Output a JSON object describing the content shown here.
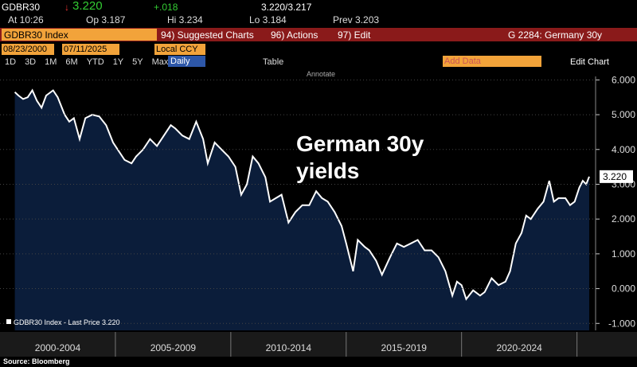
{
  "header": {
    "ticker": "GDBR30",
    "price": "3.220",
    "change": "+.018",
    "bid_ask": "3.220/3.217",
    "time": "At 10:26",
    "open": "Op 3.187",
    "high": "Hi 3.234",
    "low": "Lo 3.184",
    "prev": "Prev 3.203",
    "security": "GDBR30 Index",
    "menu": [
      "94) Suggested Charts",
      "96) Actions",
      "97) Edit"
    ],
    "page": "G 2284: Germany 30y",
    "start_date": "08/23/2000",
    "end_date": "07/11/2025",
    "currency": "Local CCY",
    "periods": [
      "1D",
      "3D",
      "1M",
      "6M",
      "YTD",
      "1Y",
      "5Y",
      "Max"
    ],
    "frequency": "Daily",
    "table": "Table",
    "add_data": "Add Data",
    "edit_chart": "Edit Chart",
    "annotate": "Annotate"
  },
  "chart_data": {
    "type": "line",
    "annotation": [
      "German 30y",
      "yields"
    ],
    "legend": "GDBR30 Index - Last Price 3.220",
    "last_price": {
      "value": 3.22,
      "label": "3.220"
    },
    "source": "Source: Bloomberg",
    "x_periods": [
      {
        "label": "2000-2004",
        "from": 2000,
        "to": 2005
      },
      {
        "label": "2005-2009",
        "from": 2005,
        "to": 2010
      },
      {
        "label": "2010-2014",
        "from": 2010,
        "to": 2015
      },
      {
        "label": "2015-2019",
        "from": 2015,
        "to": 2020
      },
      {
        "label": "2020-2024",
        "from": 2020,
        "to": 2025
      }
    ],
    "xlim": [
      2000,
      2025.6
    ],
    "ylim": [
      -1.2,
      6.1
    ],
    "yticks": [
      {
        "value": 6,
        "label": "6.000"
      },
      {
        "value": 5,
        "label": "5.000"
      },
      {
        "value": 4,
        "label": "4.000"
      },
      {
        "value": 3,
        "label": "3.000"
      },
      {
        "value": 2,
        "label": "2.000"
      },
      {
        "value": 1,
        "label": "1.000"
      },
      {
        "value": 0,
        "label": "0.000"
      },
      {
        "value": -1,
        "label": "-1.000"
      }
    ],
    "grid": true,
    "line_color": "#ffffff",
    "area_color": "#0b1d3a",
    "x": [
      2000.64,
      2000.8,
      2001.0,
      2001.2,
      2001.4,
      2001.6,
      2001.8,
      2002.0,
      2002.3,
      2002.5,
      2002.8,
      2003.0,
      2003.2,
      2003.45,
      2003.7,
      2004.0,
      2004.3,
      2004.6,
      2004.9,
      2005.1,
      2005.4,
      2005.7,
      2005.9,
      2006.2,
      2006.5,
      2006.8,
      2007.1,
      2007.4,
      2007.6,
      2007.9,
      2008.2,
      2008.5,
      2008.8,
      2009.0,
      2009.3,
      2009.6,
      2009.9,
      2010.2,
      2010.45,
      2010.7,
      2010.95,
      2011.2,
      2011.5,
      2011.7,
      2011.95,
      2012.2,
      2012.5,
      2012.8,
      2013.1,
      2013.4,
      2013.7,
      2013.95,
      2014.2,
      2014.5,
      2014.8,
      2015.0,
      2015.3,
      2015.5,
      2015.8,
      2016.0,
      2016.3,
      2016.55,
      2016.9,
      2017.2,
      2017.5,
      2017.8,
      2018.1,
      2018.4,
      2018.7,
      2019.0,
      2019.3,
      2019.6,
      2019.8,
      2020.0,
      2020.2,
      2020.5,
      2020.8,
      2021.0,
      2021.3,
      2021.6,
      2021.9,
      2022.1,
      2022.35,
      2022.6,
      2022.8,
      2023.0,
      2023.3,
      2023.55,
      2023.8,
      2024.0,
      2024.2,
      2024.5,
      2024.7,
      2024.9,
      2025.1,
      2025.25,
      2025.4,
      2025.53
    ],
    "values": [
      5.65,
      5.55,
      5.45,
      5.5,
      5.7,
      5.4,
      5.2,
      5.55,
      5.7,
      5.5,
      5.0,
      4.8,
      4.9,
      4.3,
      4.9,
      5.0,
      4.95,
      4.7,
      4.2,
      4.0,
      3.7,
      3.6,
      3.8,
      4.0,
      4.3,
      4.1,
      4.4,
      4.7,
      4.6,
      4.4,
      4.3,
      4.8,
      4.3,
      3.6,
      4.2,
      4.0,
      3.8,
      3.5,
      2.7,
      3.0,
      3.8,
      3.6,
      3.2,
      2.5,
      2.6,
      2.7,
      1.9,
      2.2,
      2.4,
      2.4,
      2.8,
      2.6,
      2.5,
      2.2,
      1.8,
      1.3,
      0.5,
      1.4,
      1.2,
      1.1,
      0.8,
      0.4,
      0.9,
      1.3,
      1.2,
      1.3,
      1.4,
      1.1,
      1.1,
      0.9,
      0.5,
      -0.2,
      0.2,
      0.1,
      -0.3,
      -0.05,
      -0.2,
      -0.1,
      0.3,
      0.1,
      0.2,
      0.5,
      1.3,
      1.6,
      2.1,
      2.0,
      2.3,
      2.5,
      3.1,
      2.5,
      2.6,
      2.6,
      2.4,
      2.5,
      2.9,
      3.1,
      3.0,
      3.22
    ]
  }
}
